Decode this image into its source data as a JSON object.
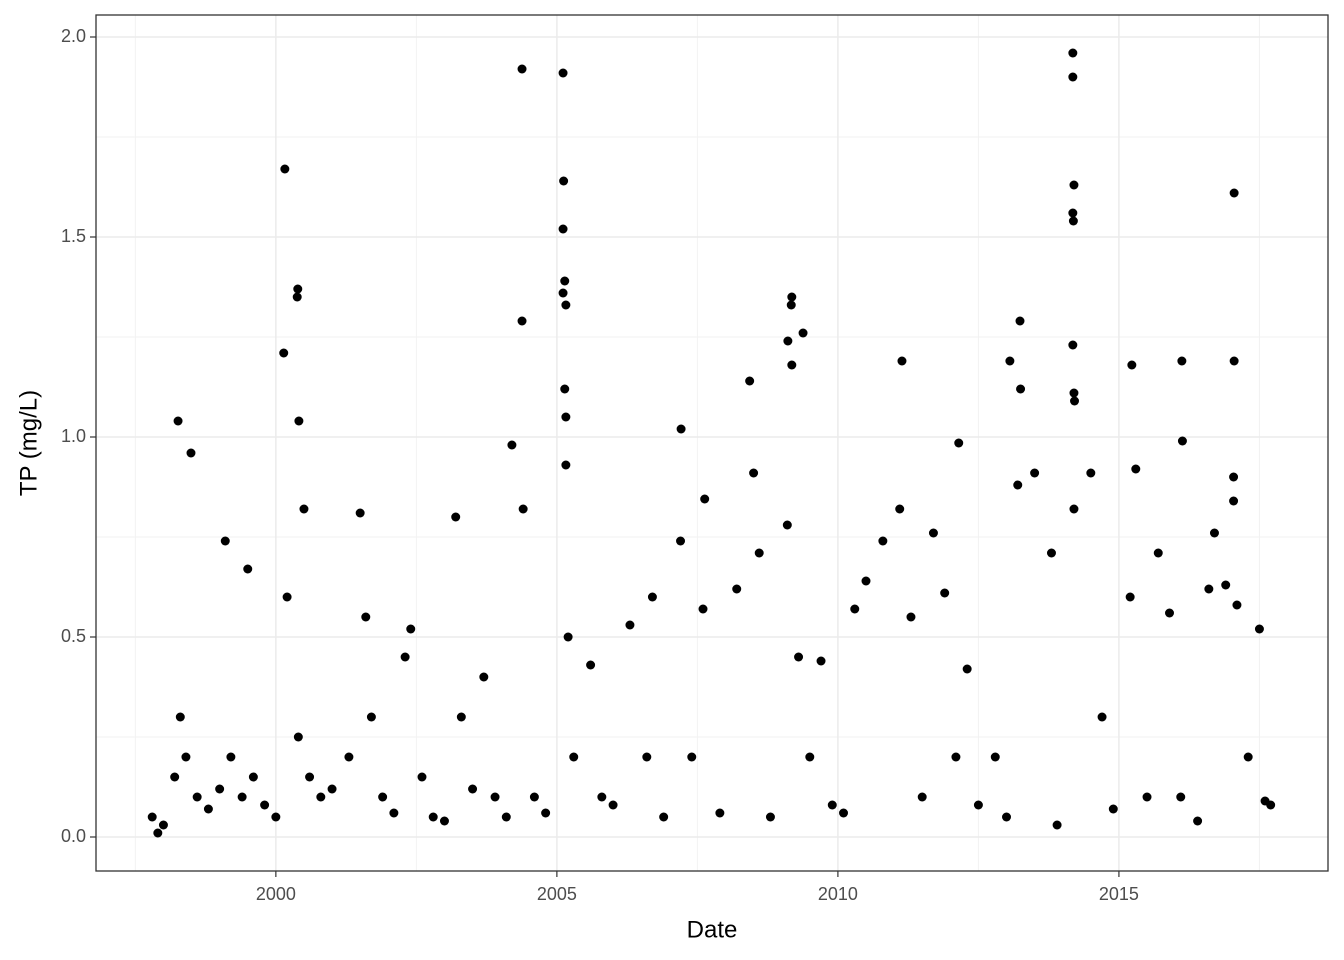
{
  "chart_data": {
    "type": "scatter",
    "x_label": "Date",
    "y_label": "TP (mg/L)",
    "color": "#000000",
    "grid": true,
    "xlim": [
      1996.8,
      2018.72
    ],
    "ylim": [
      -0.085,
      2.055
    ],
    "xticks": [
      2000,
      2005,
      2010,
      2015
    ],
    "yticks": [
      {
        "value": 0,
        "label": "0.0"
      },
      {
        "value": 0.5,
        "label": "0.5"
      },
      {
        "value": 1,
        "label": "1.0"
      },
      {
        "value": 1.5,
        "label": "1.5"
      },
      {
        "value": 2,
        "label": "2.0"
      }
    ],
    "x": [
      1998.26,
      1998.49,
      2000.16,
      2000.14,
      2000.39,
      2000.38,
      2000.41,
      2004.38,
      2004.38,
      2005.11,
      2005.12,
      2005.11,
      2005.14,
      2005.11,
      2005.16,
      2005.14,
      2005.16,
      2005.16,
      2007.21,
      2007.63,
      2008.43,
      2009.18,
      2009.17,
      2009.11,
      2009.18,
      2009.38,
      2011.14,
      2012.15,
      2013.06,
      2013.24,
      2013.25,
      2014.18,
      2014.18,
      2014.2,
      2014.18,
      2014.19,
      2014.18,
      2014.2,
      2014.21,
      2015.23,
      2016.12,
      2016.13,
      2017.05,
      2017.05,
      2017.04,
      2017.04,
      1997.8,
      1997.9,
      1998.0,
      1998.2,
      1998.3,
      1998.4,
      1998.6,
      1998.8,
      1999.0,
      1999.1,
      1999.2,
      1999.4,
      1999.5,
      1999.6,
      1999.8,
      2000.0,
      2000.2,
      2000.4,
      2000.5,
      2000.6,
      2000.8,
      2001.0,
      2001.3,
      2001.5,
      2001.6,
      2001.7,
      2001.9,
      2002.1,
      2002.3,
      2002.4,
      2002.6,
      2002.8,
      2003.0,
      2003.2,
      2003.3,
      2003.5,
      2003.7,
      2003.9,
      2004.1,
      2004.2,
      2004.4,
      2004.6,
      2004.8,
      2005.2,
      2005.3,
      2005.6,
      2005.8,
      2006.0,
      2006.3,
      2006.6,
      2006.7,
      2006.9,
      2007.2,
      2007.4,
      2007.6,
      2007.9,
      2008.2,
      2008.5,
      2008.6,
      2008.8,
      2009.1,
      2009.3,
      2009.5,
      2009.7,
      2009.9,
      2010.1,
      2010.3,
      2010.5,
      2010.8,
      2011.1,
      2011.3,
      2011.5,
      2011.7,
      2011.9,
      2012.1,
      2012.3,
      2012.5,
      2012.8,
      2013.0,
      2013.2,
      2013.5,
      2013.8,
      2013.9,
      2014.2,
      2014.5,
      2014.7,
      2014.9,
      2015.2,
      2015.3,
      2015.5,
      2015.7,
      2015.9,
      2016.1,
      2016.4,
      2016.6,
      2016.7,
      2016.9,
      2017.1,
      2017.3,
      2017.5,
      2017.6,
      2017.7
    ],
    "values": [
      1.04,
      0.96,
      1.67,
      1.21,
      1.37,
      1.35,
      1.04,
      1.92,
      1.29,
      1.91,
      1.64,
      1.52,
      1.39,
      1.36,
      1.33,
      1.12,
      1.05,
      0.93,
      1.02,
      0.845,
      1.14,
      1.35,
      1.33,
      1.24,
      1.18,
      1.26,
      1.19,
      0.985,
      1.19,
      1.29,
      1.12,
      1.96,
      1.9,
      1.63,
      1.56,
      1.54,
      1.23,
      1.11,
      1.09,
      1.18,
      1.19,
      0.99,
      1.61,
      1.19,
      0.9,
      0.84,
      0.05,
      0.01,
      0.03,
      0.15,
      0.3,
      0.2,
      0.1,
      0.07,
      0.12,
      0.74,
      0.2,
      0.1,
      0.67,
      0.15,
      0.08,
      0.05,
      0.6,
      0.25,
      0.82,
      0.15,
      0.1,
      0.12,
      0.2,
      0.81,
      0.55,
      0.3,
      0.1,
      0.06,
      0.45,
      0.52,
      0.15,
      0.05,
      0.04,
      0.8,
      0.3,
      0.12,
      0.4,
      0.1,
      0.05,
      0.98,
      0.82,
      0.1,
      0.06,
      0.5,
      0.2,
      0.43,
      0.1,
      0.08,
      0.53,
      0.2,
      0.6,
      0.05,
      0.74,
      0.2,
      0.57,
      0.06,
      0.62,
      0.91,
      0.71,
      0.05,
      0.78,
      0.45,
      0.2,
      0.44,
      0.08,
      0.06,
      0.57,
      0.64,
      0.74,
      0.82,
      0.55,
      0.1,
      0.76,
      0.61,
      0.2,
      0.42,
      0.08,
      0.2,
      0.05,
      0.88,
      0.91,
      0.71,
      0.03,
      0.82,
      0.91,
      0.3,
      0.07,
      0.6,
      0.92,
      0.1,
      0.71,
      0.56,
      0.1,
      0.04,
      0.62,
      0.76,
      0.63,
      0.58,
      0.2,
      0.52,
      0.09,
      0.08
    ]
  }
}
